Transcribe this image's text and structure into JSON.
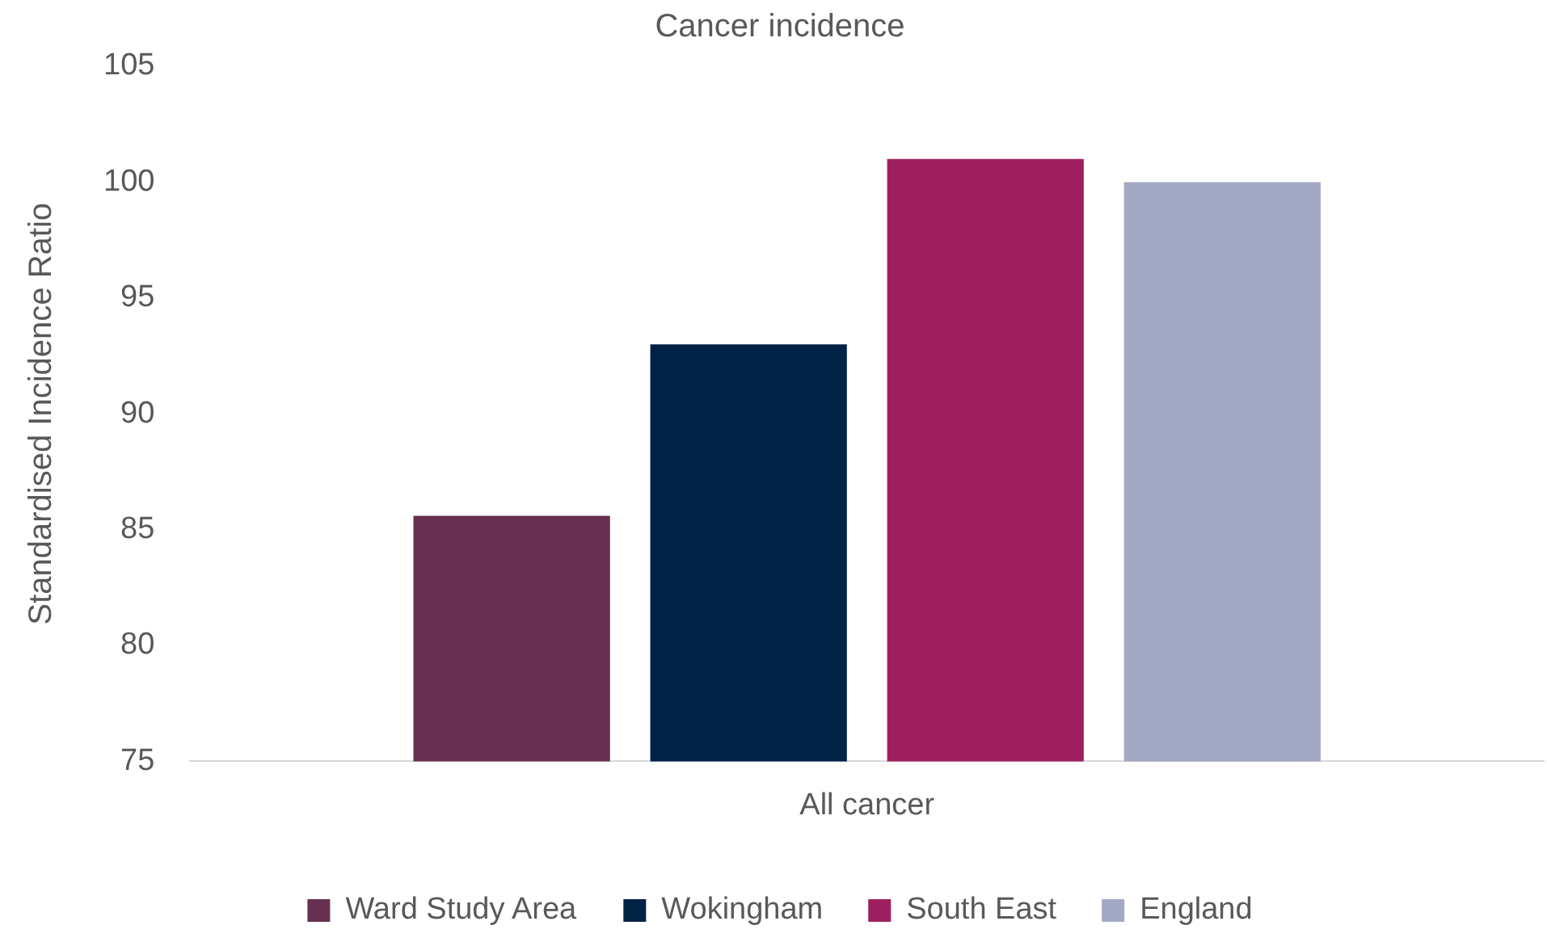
{
  "chart_data": {
    "type": "bar",
    "title": "Cancer incidence",
    "ylabel": "Standardised Incidence Ratio",
    "categories": [
      "All cancer"
    ],
    "series": [
      {
        "name": "Ward Study Area",
        "color": "#673050",
        "values": [
          85.6
        ]
      },
      {
        "name": "Wokingham",
        "color": "#002244",
        "values": [
          93
        ]
      },
      {
        "name": "South East",
        "color": "#9e1f5e",
        "values": [
          101
        ]
      },
      {
        "name": "England",
        "color": "#a3a8c4",
        "values": [
          100
        ]
      }
    ],
    "ylim": [
      75,
      105
    ],
    "yticks": [
      75,
      80,
      85,
      90,
      95,
      100,
      105
    ],
    "grid": false,
    "legend": "bottom"
  }
}
